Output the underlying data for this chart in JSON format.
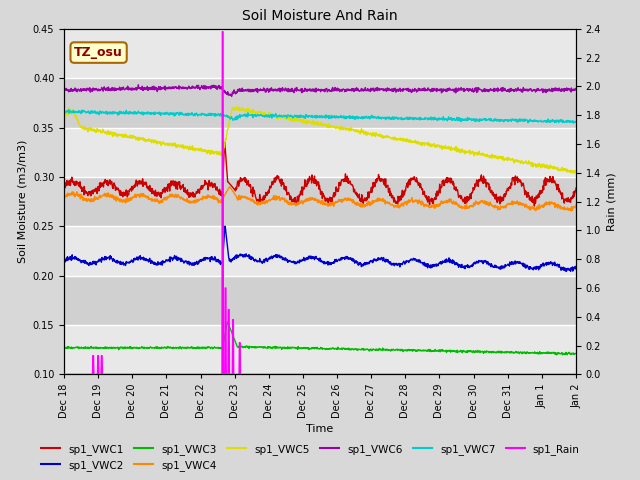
{
  "title": "Soil Moisture And Rain",
  "ylabel_left": "Soil Moisture (m3/m3)",
  "ylabel_right": "Rain (mm)",
  "xlabel": "Time",
  "ylim_left": [
    0.1,
    0.45
  ],
  "ylim_right": [
    0.0,
    2.4
  ],
  "yticks_left": [
    0.1,
    0.15,
    0.2,
    0.25,
    0.3,
    0.35,
    0.4,
    0.45
  ],
  "yticks_right": [
    0.0,
    0.2,
    0.4,
    0.6,
    0.8,
    1.0,
    1.2,
    1.4,
    1.6,
    1.8,
    2.0,
    2.2,
    2.4
  ],
  "annotation_text": "TZ_osu",
  "background_color": "#d8d8d8",
  "band_colors": [
    "#e0e0e0",
    "#cccccc"
  ],
  "series_colors": {
    "sp1_VWC1": "#cc0000",
    "sp1_VWC2": "#0000cc",
    "sp1_VWC3": "#00bb00",
    "sp1_VWC4": "#ff8800",
    "sp1_VWC5": "#dddd00",
    "sp1_VWC6": "#9900aa",
    "sp1_VWC7": "#00cccc",
    "sp1_Rain": "#ff00ff"
  },
  "n_days": 15,
  "pts_per_day": 96,
  "rain_event_day": 4.65,
  "xtick_labels": [
    "Dec 18",
    "Dec 19",
    "Dec 20",
    "Dec 21",
    "Dec 22",
    "Dec 23",
    "Dec 24",
    "Dec 25",
    "Dec 26",
    "Dec 27",
    "Dec 28",
    "Dec 29",
    "Dec 30",
    "Dec 31",
    "Jan 1",
    "Jan 2"
  ]
}
